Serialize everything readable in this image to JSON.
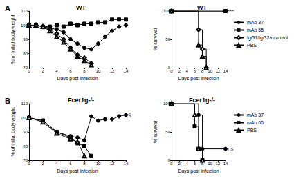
{
  "chart_data": [
    {
      "type": "line",
      "panel": "A",
      "title": "WT",
      "x_label": "Days post infection",
      "y_label": "% of initial body weight",
      "xlim": [
        0,
        14
      ],
      "xticks": [
        0,
        2,
        4,
        6,
        8,
        10,
        12,
        14
      ],
      "ylim": [
        70,
        110
      ],
      "yticks": [
        70,
        80,
        90,
        100,
        110
      ],
      "grid": false,
      "series": [
        {
          "name": "mAb 37",
          "color": "#000000",
          "marker": "circle",
          "x": [
            0,
            1,
            2,
            3,
            4,
            5,
            6,
            7,
            8,
            9,
            10,
            11,
            12,
            13,
            14
          ],
          "values": [
            100,
            100,
            99,
            98,
            97,
            95,
            90,
            87,
            84,
            83,
            87,
            92,
            96,
            99,
            100
          ]
        },
        {
          "name": "mAb 65",
          "color": "#000000",
          "marker": "square",
          "x": [
            0,
            1,
            2,
            3,
            4,
            5,
            6,
            7,
            8,
            9,
            10,
            11,
            12,
            13,
            14
          ],
          "values": [
            100,
            100,
            99,
            99,
            100,
            99,
            101,
            100,
            101,
            101,
            102,
            102,
            104,
            104,
            104
          ]
        },
        {
          "name": "IgG1/IgG2a control",
          "color": "#000000",
          "marker": "open diamond",
          "x": [
            0,
            1,
            2,
            3,
            4,
            5,
            6,
            7,
            8,
            9
          ],
          "values": [
            100,
            100,
            99,
            97,
            94,
            90,
            84,
            79,
            77,
            73
          ]
        },
        {
          "name": "PBS",
          "color": "#000000",
          "marker": "open triangle",
          "x": [
            0,
            1,
            2,
            3,
            4,
            5,
            6,
            7,
            8,
            9
          ],
          "values": [
            100,
            100,
            99,
            96,
            92,
            88,
            83,
            78,
            75,
            72
          ]
        }
      ]
    },
    {
      "type": "step",
      "title": "WT",
      "legend": "right",
      "x_label": "Days post infection",
      "y_label": "% survival",
      "xlim": [
        0,
        14
      ],
      "xticks": [
        0,
        2,
        4,
        6,
        8,
        10,
        12,
        14
      ],
      "ylim": [
        0,
        100
      ],
      "yticks": [
        0,
        50,
        100
      ],
      "grid": false,
      "annotations": [
        {
          "text": "***",
          "x": 14,
          "y": 100
        }
      ],
      "series": [
        {
          "name": "mAb 37",
          "color": "#000000",
          "marker": "circle",
          "x": [
            0,
            14
          ],
          "values": [
            100,
            100
          ]
        },
        {
          "name": "mAb 65",
          "color": "#000000",
          "marker": "square",
          "x": [
            0,
            14
          ],
          "values": [
            100,
            100
          ]
        },
        {
          "name": "IgG1/IgG2a control",
          "color": "#000000",
          "marker": "open diamond",
          "x": [
            0,
            7,
            8,
            9
          ],
          "values": [
            100,
            67,
            33,
            0
          ]
        },
        {
          "name": "PBS",
          "color": "#000000",
          "marker": "open triangle",
          "x": [
            0,
            7,
            8,
            9
          ],
          "values": [
            100,
            40,
            20,
            0
          ]
        }
      ]
    },
    {
      "type": "line",
      "panel": "B",
      "title": "Fcer1g-/-",
      "x_label": "Days post infection",
      "y_label": "% of initial body weight",
      "xlim": [
        0,
        14
      ],
      "xticks": [
        0,
        2,
        4,
        6,
        8,
        10,
        12,
        14
      ],
      "ylim": [
        70,
        110
      ],
      "yticks": [
        70,
        80,
        90,
        100,
        110
      ],
      "grid": false,
      "annotations": [
        {
          "text": "§",
          "x": 14,
          "y": 102
        }
      ],
      "series": [
        {
          "name": "mAb 37",
          "color": "#000000",
          "marker": "circle",
          "x": [
            0,
            2,
            4,
            6,
            7,
            8,
            9,
            10,
            11,
            12,
            13,
            14
          ],
          "values": [
            100,
            98,
            90,
            87,
            86,
            84,
            101,
            98,
            99,
            99,
            101,
            102
          ]
        },
        {
          "name": "mAb 65",
          "color": "#000000",
          "marker": "square",
          "x": [
            0,
            2,
            4,
            6,
            7,
            8,
            9
          ],
          "values": [
            100,
            98,
            90,
            86,
            82,
            80,
            73
          ]
        },
        {
          "name": "PBS",
          "color": "#000000",
          "marker": "open triangle",
          "x": [
            0,
            2,
            4,
            6,
            7,
            8
          ],
          "values": [
            100,
            97,
            89,
            85,
            83,
            73
          ]
        }
      ]
    },
    {
      "type": "step",
      "title": "Fcer1g-/-",
      "legend": "right",
      "x_label": "Days post infection",
      "y_label": "% survival",
      "xlim": [
        0,
        14
      ],
      "xticks": [
        0,
        2,
        4,
        6,
        8,
        10,
        12,
        14
      ],
      "ylim": [
        0,
        100
      ],
      "yticks": [
        0,
        50,
        100
      ],
      "grid": false,
      "annotations": [
        {
          "text": "ns",
          "x": 14,
          "y": 20
        }
      ],
      "series": [
        {
          "name": "mAb 37",
          "color": "#000000",
          "marker": "circle",
          "x": [
            0,
            7,
            8,
            14
          ],
          "values": [
            100,
            80,
            20,
            20
          ]
        },
        {
          "name": "mAb 65",
          "color": "#000000",
          "marker": "square",
          "x": [
            0,
            6,
            7,
            8
          ],
          "values": [
            100,
            60,
            20,
            0
          ]
        },
        {
          "name": "PBS",
          "color": "#000000",
          "marker": "open triangle",
          "x": [
            0,
            6,
            7,
            8
          ],
          "values": [
            100,
            80,
            20,
            0
          ]
        }
      ]
    }
  ]
}
